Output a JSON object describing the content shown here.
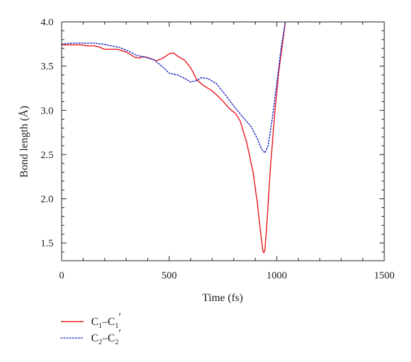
{
  "chart_data": {
    "type": "line",
    "title": "",
    "xlabel": "Time (fs)",
    "ylabel": "Bond length (Å)",
    "xlim": [
      0,
      1500
    ],
    "ylim": [
      1.3,
      4.0
    ],
    "x_ticks": [
      "0",
      "500",
      "1000",
      "1500"
    ],
    "y_ticks": [
      "1.5",
      "2.0",
      "2.5",
      "3.0",
      "3.5",
      "4.0"
    ],
    "legend_placement": "below-left",
    "series": [
      {
        "name": "C1–C1′",
        "legend_base": "C",
        "legend_sub1": "1",
        "legend_mid": "–C",
        "legend_sub2": "1",
        "legend_prime": "′",
        "color": "#e8101a",
        "style": "solid",
        "points": [
          [
            0,
            3.74
          ],
          [
            30,
            3.74
          ],
          [
            60,
            3.74
          ],
          [
            90,
            3.74
          ],
          [
            120,
            3.73
          ],
          [
            150,
            3.73
          ],
          [
            170,
            3.72
          ],
          [
            200,
            3.69
          ],
          [
            230,
            3.69
          ],
          [
            260,
            3.69
          ],
          [
            300,
            3.66
          ],
          [
            340,
            3.6
          ],
          [
            360,
            3.59
          ],
          [
            380,
            3.61
          ],
          [
            410,
            3.59
          ],
          [
            440,
            3.56
          ],
          [
            470,
            3.59
          ],
          [
            500,
            3.64
          ],
          [
            520,
            3.65
          ],
          [
            540,
            3.61
          ],
          [
            570,
            3.57
          ],
          [
            600,
            3.48
          ],
          [
            630,
            3.34
          ],
          [
            660,
            3.28
          ],
          [
            700,
            3.22
          ],
          [
            740,
            3.13
          ],
          [
            780,
            3.02
          ],
          [
            810,
            2.96
          ],
          [
            830,
            2.88
          ],
          [
            860,
            2.64
          ],
          [
            890,
            2.3
          ],
          [
            910,
            1.95
          ],
          [
            925,
            1.62
          ],
          [
            935,
            1.42
          ],
          [
            940,
            1.39
          ],
          [
            945,
            1.42
          ],
          [
            955,
            1.75
          ],
          [
            970,
            2.33
          ],
          [
            990,
            2.95
          ],
          [
            1010,
            3.45
          ],
          [
            1025,
            3.72
          ],
          [
            1040,
            4.0
          ]
        ]
      },
      {
        "name": "C2–C2′",
        "legend_base": "C",
        "legend_sub1": "2",
        "legend_mid": "–C",
        "legend_sub2": "2",
        "legend_prime": "′",
        "color": "#2b35c8",
        "style": "dotted",
        "points": [
          [
            0,
            3.75
          ],
          [
            50,
            3.76
          ],
          [
            100,
            3.76
          ],
          [
            150,
            3.76
          ],
          [
            190,
            3.75
          ],
          [
            230,
            3.73
          ],
          [
            270,
            3.71
          ],
          [
            310,
            3.67
          ],
          [
            350,
            3.62
          ],
          [
            390,
            3.6
          ],
          [
            430,
            3.57
          ],
          [
            470,
            3.49
          ],
          [
            500,
            3.42
          ],
          [
            540,
            3.4
          ],
          [
            580,
            3.35
          ],
          [
            600,
            3.32
          ],
          [
            630,
            3.34
          ],
          [
            650,
            3.37
          ],
          [
            680,
            3.36
          ],
          [
            720,
            3.3
          ],
          [
            760,
            3.18
          ],
          [
            800,
            3.05
          ],
          [
            840,
            2.93
          ],
          [
            880,
            2.82
          ],
          [
            910,
            2.68
          ],
          [
            930,
            2.56
          ],
          [
            945,
            2.52
          ],
          [
            960,
            2.6
          ],
          [
            980,
            2.92
          ],
          [
            1000,
            3.3
          ],
          [
            1020,
            3.7
          ],
          [
            1040,
            4.0
          ]
        ]
      }
    ]
  }
}
